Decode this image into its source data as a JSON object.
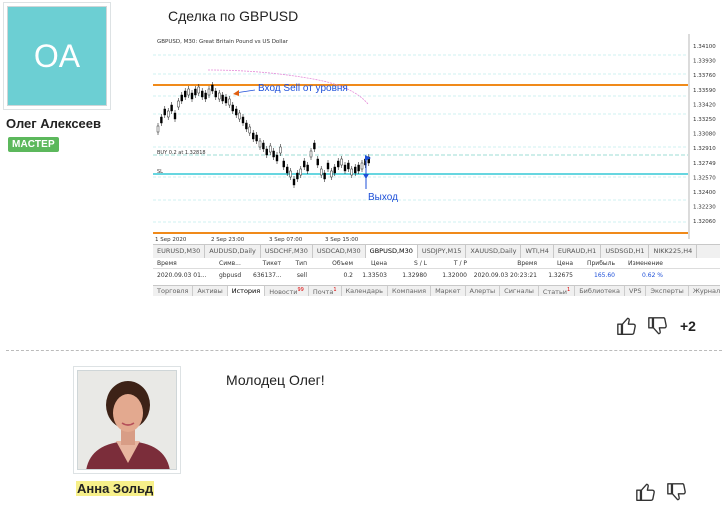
{
  "post": {
    "author_initials": "OA",
    "author_name": "Олег Алексеев",
    "author_badge": "МАСТЕР",
    "title": "Сделка по GBPUSD",
    "likes_extra": "+2"
  },
  "chart": {
    "header": "GBPUSD, M30:  Great Britain Pound vs US Dollar",
    "buy_label": "BUY 0.2 at 1.32818",
    "sl_label": "SL",
    "entry_label": "Вход Sell от уровня",
    "exit_label": "Выход",
    "price_ticks": [
      "1.34100",
      "1.33930",
      "1.33760",
      "1.33590",
      "1.33420",
      "1.33250",
      "1.33080",
      "1.32910",
      "1.32749",
      "1.32570",
      "1.32400",
      "1.32230",
      "1.32060"
    ],
    "time_ticks": [
      "1 Sep 2020",
      "2 Sep 23:00",
      "3 Sep 07:00",
      "3 Sep 15:00"
    ],
    "colors": {
      "level": "#f08a1a",
      "buy_line": "#7fd3c8",
      "sl_line": "#33c9d6",
      "annotation": "#1d4fd8"
    }
  },
  "symbol_tabs": [
    "EURUSD,M30",
    "AUDUSD,Daily",
    "USDCHF,M30",
    "USDCAD,M30",
    "GBPUSD,M30",
    "USDJPY,M15",
    "XAUUSD,Daily",
    "WTI,H4",
    "EURAUD,H1",
    "USDSGD,H1",
    "NIKK225,H4"
  ],
  "orders": {
    "headers": [
      "Время",
      "Симв...",
      "Тикет",
      "Тип",
      "Объем",
      "Цена",
      "S / L",
      "T / P",
      "Время",
      "Цена",
      "Прибыль",
      "Изменение"
    ],
    "row": [
      "2020.09.03 01...",
      "gbpusd",
      "636137...",
      "sell",
      "0.2",
      "1.33503",
      "1.32980",
      "1.32000",
      "2020.09.03 20:23:21",
      "1.32675",
      "165.60",
      "0.62 %"
    ]
  },
  "terminal_tabs": [
    "Торговля",
    "Активы",
    "История",
    "Новости",
    "Почта",
    "Календарь",
    "Компания",
    "Маркет",
    "Алерты",
    "Сигналы",
    "Статьи",
    "Библиотека",
    "VPS",
    "Эксперты",
    "Журнал"
  ],
  "terminal_counts": {
    "news": "99",
    "mail": "1",
    "articles": "1"
  },
  "comment": {
    "author_name": "Анна Зольд",
    "text": "Молодец Олег!"
  }
}
